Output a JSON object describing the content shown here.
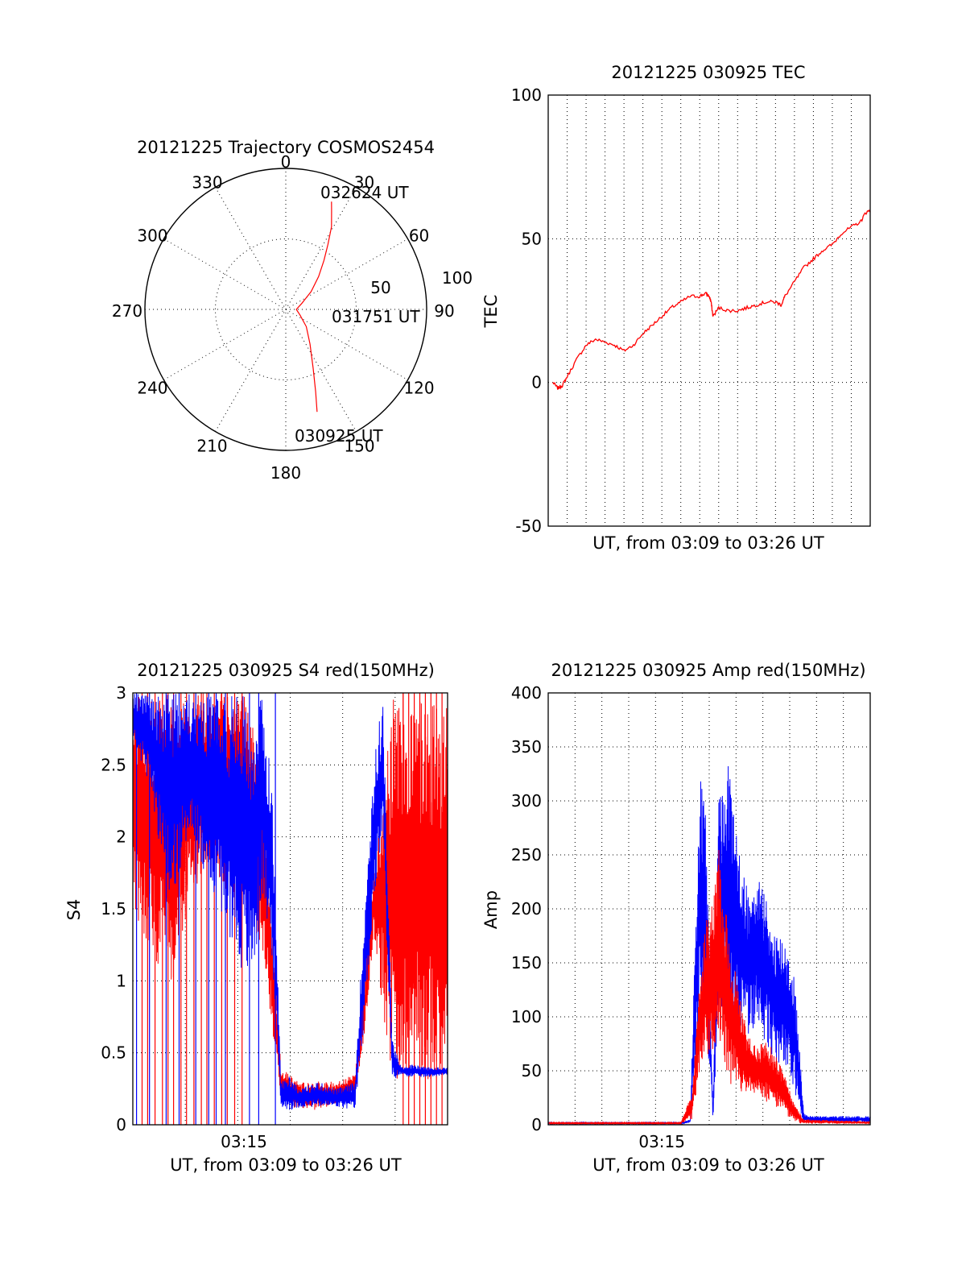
{
  "colors": {
    "red": "#ff0000",
    "blue": "#0000ff",
    "axis": "#000000"
  },
  "chart_data": [
    {
      "type": "polar",
      "title": "20121225 Trajectory COSMOS2454",
      "angle_labels": [
        "0",
        "30",
        "60",
        "90",
        "120",
        "150",
        "180",
        "210",
        "240",
        "270",
        "300",
        "330"
      ],
      "radius_labels": [
        "50",
        "100"
      ],
      "rlim": [
        0,
        100
      ],
      "grid": true,
      "series": [
        {
          "color": "#ff0000",
          "points": [
            [
              163,
              76
            ],
            [
              160,
              62
            ],
            [
              155,
              46
            ],
            [
              145,
              30
            ],
            [
              130,
              19
            ],
            [
              112,
              11
            ],
            [
              90,
              7.5
            ],
            [
              70,
              12
            ],
            [
              55,
              22
            ],
            [
              45,
              33
            ],
            [
              38,
              44
            ],
            [
              33,
              55
            ],
            [
              29,
              67
            ],
            [
              25,
              77
            ],
            [
              23,
              83
            ]
          ]
        }
      ],
      "annotations": [
        {
          "text": "032624 UT",
          "at": "end"
        },
        {
          "text": "031751 UT",
          "at": "middle"
        },
        {
          "text": "030925 UT",
          "at": "start"
        }
      ]
    },
    {
      "type": "line",
      "title": "20121225 030925 TEC",
      "xlabel": "UT, from 03:09 to 03:26 UT",
      "ylabel": "TEC",
      "xlim": [
        0,
        17
      ],
      "ylim": [
        -50,
        100
      ],
      "yticks": [
        "100",
        "50",
        "0",
        "-50"
      ],
      "xticks": [],
      "grid": true,
      "series": [
        {
          "color": "#ff0000",
          "x": [
            0.25,
            0.5,
            0.75,
            1.0,
            1.5,
            2.0,
            2.5,
            3.0,
            3.5,
            4.0,
            4.5,
            5.0,
            5.5,
            6.0,
            6.5,
            7.0,
            7.5,
            8.0,
            8.3,
            8.5,
            8.6,
            8.7,
            9.0,
            9.5,
            10.0,
            10.5,
            11.0,
            11.5,
            12.0,
            12.3,
            12.5,
            13.0,
            13.5,
            14.0,
            14.5,
            15.0,
            15.5,
            16.0,
            16.5,
            16.75,
            17.0
          ],
          "y": [
            0,
            -2,
            -1,
            2,
            8,
            13,
            15,
            14,
            13,
            11,
            13,
            17,
            20,
            23,
            26,
            28,
            30,
            30,
            31,
            30,
            28,
            23,
            26,
            25,
            25,
            26,
            27,
            28,
            28,
            27,
            30,
            35,
            40,
            43,
            46,
            48,
            52,
            54,
            56,
            59,
            60
          ]
        }
      ]
    },
    {
      "type": "line",
      "title": "20121225 030925 S4 red(150MHz)",
      "xlabel": "UT, from 03:09 to 03:26 UT",
      "ylabel": "S4",
      "xlim": [
        0,
        17
      ],
      "ylim": [
        0,
        3
      ],
      "yticks": [
        "3",
        "2.5",
        "2",
        "1.5",
        "1",
        "0.5",
        "0"
      ],
      "xticks": [
        {
          "x": 6,
          "label": "03:15"
        }
      ],
      "grid": true,
      "series": [
        {
          "color": "#ff0000",
          "envelope": {
            "x": [
              0.0,
              1.0,
              2.0,
              3.0,
              4.0,
              5.0,
              6.0,
              7.0,
              7.5,
              8.0,
              8.5,
              9.0,
              10.0,
              11.0,
              12.0,
              12.5,
              13.0,
              14.0,
              15.0,
              16.0,
              17.0
            ],
            "lo": [
              1.5,
              1.2,
              0.9,
              1.5,
              1.8,
              1.6,
              1.6,
              1.2,
              0.7,
              0.2,
              0.1,
              0.12,
              0.1,
              0.15,
              0.2,
              0.6,
              1.3,
              0.3,
              0.3,
              0.3,
              0.3
            ],
            "hi": [
              3.0,
              3.0,
              3.0,
              3.0,
              3.0,
              3.0,
              3.0,
              2.5,
              1.5,
              0.4,
              0.35,
              0.3,
              0.3,
              0.3,
              0.35,
              1.0,
              1.8,
              3.0,
              3.0,
              3.0,
              3.0
            ]
          },
          "dropouts": [
            0.5,
            0.8,
            1.2,
            1.6,
            1.9,
            2.2,
            2.6,
            2.9,
            3.3,
            3.7,
            4.0,
            4.4,
            4.8,
            5.1,
            5.5,
            5.9,
            14.6,
            14.9,
            15.2,
            15.5,
            15.8,
            16.1,
            16.4,
            16.7
          ]
        },
        {
          "color": "#0000ff",
          "envelope": {
            "x": [
              0.0,
              1.0,
              2.0,
              3.0,
              4.0,
              5.0,
              6.0,
              6.5,
              7.0,
              7.5,
              8.0,
              8.5,
              9.0,
              10.0,
              11.0,
              12.0,
              12.5,
              13.0,
              13.5,
              14.0,
              14.5,
              15.0,
              16.0,
              17.0
            ],
            "lo": [
              2.7,
              2.3,
              1.5,
              2.0,
              1.7,
              1.4,
              1.0,
              1.0,
              1.6,
              1.2,
              0.12,
              0.1,
              0.12,
              0.12,
              0.12,
              0.1,
              0.7,
              1.5,
              2.0,
              0.3,
              0.35,
              0.33,
              0.33,
              0.35
            ],
            "hi": [
              3.0,
              3.0,
              3.0,
              3.0,
              3.0,
              3.0,
              3.0,
              2.8,
              3.0,
              2.4,
              0.3,
              0.35,
              0.25,
              0.3,
              0.25,
              0.3,
              1.5,
              2.5,
              3.0,
              0.6,
              0.4,
              0.42,
              0.4,
              0.4
            ]
          },
          "dropouts": [
            0.2,
            0.9,
            1.8,
            2.5,
            3.4,
            4.1,
            4.5,
            5.0,
            6.3,
            6.8,
            7.7
          ]
        }
      ]
    },
    {
      "type": "line",
      "title": "20121225 030925 Amp red(150MHz)",
      "xlabel": "UT, from 03:09 to 03:26 UT",
      "ylabel": "Amp",
      "xlim": [
        0,
        17
      ],
      "ylim": [
        0,
        400
      ],
      "yticks": [
        "400",
        "350",
        "300",
        "250",
        "200",
        "150",
        "100",
        "50",
        "0"
      ],
      "xticks": [
        {
          "x": 6,
          "label": "03:15"
        }
      ],
      "grid": true,
      "series": [
        {
          "color": "#ff0000",
          "envelope": {
            "x": [
              0.0,
              7.0,
              7.6,
              8.0,
              8.3,
              8.6,
              9.0,
              9.5,
              10.0,
              10.5,
              11.0,
              11.5,
              12.0,
              12.5,
              13.0,
              13.5,
              17.0
            ],
            "lo": [
              1,
              1,
              5,
              50,
              60,
              60,
              80,
              40,
              30,
              25,
              30,
              20,
              15,
              10,
              2,
              1,
              1
            ],
            "hi": [
              2,
              2,
              30,
              140,
              190,
              200,
              260,
              180,
              130,
              90,
              70,
              80,
              65,
              45,
              20,
              5,
              3
            ]
          }
        },
        {
          "color": "#0000ff",
          "envelope": {
            "x": [
              0.0,
              7.0,
              7.5,
              8.0,
              8.3,
              8.7,
              9.0,
              9.5,
              10.0,
              10.5,
              11.0,
              11.5,
              12.0,
              12.5,
              13.0,
              13.5,
              14.0,
              17.0
            ],
            "lo": [
              1,
              1,
              2,
              90,
              100,
              0,
              110,
              100,
              85,
              80,
              90,
              75,
              55,
              50,
              30,
              2,
              2,
              2
            ],
            "hi": [
              2,
              2,
              5,
              330,
              300,
              20,
              300,
              340,
              260,
              220,
              235,
              210,
              180,
              175,
              140,
              10,
              8,
              8
            ]
          }
        }
      ]
    }
  ]
}
